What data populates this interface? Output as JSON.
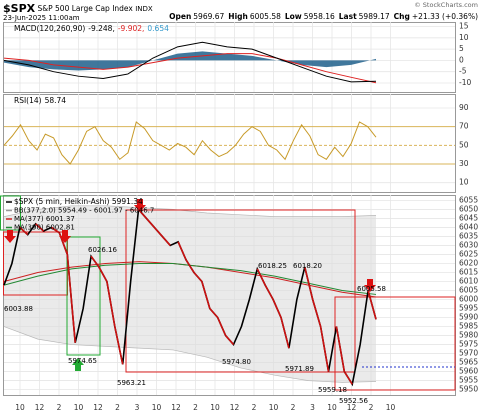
{
  "header": {
    "symbol": "$SPX",
    "name": "S&P 500 Large Cap Index",
    "exchange": "INDX",
    "date": "23-Jun-2025 11:00am",
    "quote": [
      {
        "label": "Open",
        "value": "5969.67"
      },
      {
        "label": "High",
        "value": "6005.58"
      },
      {
        "label": "Low",
        "value": "5958.16"
      },
      {
        "label": "Last",
        "value": "5989.17"
      },
      {
        "label": "Chg",
        "value": "+21.33 (+0.36%)"
      }
    ],
    "credit": "© StockCharts.com"
  },
  "chart_data": [
    {
      "type": "line",
      "legend": [
        {
          "text": "MACD(120,260,90)",
          "color": "#000000"
        },
        {
          "text": "-9.248,",
          "color": "#000000"
        },
        {
          "text": "-9.902,",
          "color": "#dd2222"
        },
        {
          "text": "0.654",
          "color": "#3399cc"
        }
      ],
      "ylim": [
        -14,
        17
      ],
      "yticks": [
        15,
        10,
        5,
        0,
        -5,
        -10
      ],
      "grid": true,
      "series": [
        {
          "color": "#1f5f8b",
          "style": "area",
          "values": [
            -1,
            -3,
            -4,
            -4.5,
            -4,
            -3,
            0,
            3,
            4,
            3,
            2,
            0,
            -2,
            -3,
            -2,
            0.654
          ]
        },
        {
          "color": "#dd2222",
          "style": "line",
          "values": [
            1,
            0,
            -2,
            -3,
            -4,
            -3,
            -1,
            1,
            2,
            3,
            3,
            1,
            -2,
            -5,
            -7.5,
            -9.902
          ]
        },
        {
          "color": "#000000",
          "style": "line",
          "values": [
            0,
            -2,
            -5,
            -7,
            -8,
            -6,
            1,
            6,
            8,
            6,
            5,
            1,
            -3,
            -7,
            -9.5,
            -9.248
          ]
        }
      ]
    },
    {
      "type": "line",
      "legend": [
        {
          "text": "RSI(14)",
          "color": "#000000"
        },
        {
          "text": "58.74",
          "color": "#000000"
        }
      ],
      "ylim": [
        0,
        105
      ],
      "yticks": [
        90,
        70,
        50,
        30,
        10
      ],
      "grid": true,
      "reference_color": "#d9b45a",
      "series": [
        {
          "color": "#c89b2a",
          "style": "line",
          "values": [
            50,
            60,
            72,
            55,
            45,
            62,
            58,
            40,
            30,
            45,
            65,
            70,
            55,
            48,
            35,
            42,
            75,
            68,
            55,
            50,
            45,
            52,
            48,
            40,
            55,
            45,
            38,
            42,
            50,
            62,
            70,
            65,
            50,
            45,
            35,
            55,
            72,
            60,
            40,
            35,
            48,
            38,
            52,
            75,
            70,
            58.74
          ]
        }
      ]
    },
    {
      "type": "line",
      "ylim": [
        5947,
        6058
      ],
      "yticks": [
        6055,
        6050,
        6045,
        6040,
        6035,
        6030,
        6025,
        6020,
        6015,
        6010,
        6005,
        6000,
        5995,
        5990,
        5985,
        5980,
        5975,
        5970,
        5965,
        5960,
        5955,
        5950
      ],
      "grid": true,
      "xtick_labels": [
        "10",
        "12",
        "2",
        "10",
        "12",
        "2",
        "3",
        "10",
        "12",
        "2",
        "10",
        "12",
        "2",
        "10",
        "2",
        "3",
        "10",
        "12",
        "2",
        "10"
      ],
      "band": {
        "name": "BB(377,2.0) 5954.49 - 6001.97 - 6046.7",
        "color": "#dcdcdc",
        "upper": [
          6046,
          6050,
          6052,
          6052,
          6051,
          6050,
          6048,
          6047,
          6046,
          6046,
          6046,
          6046.7
        ],
        "lower": [
          5985,
          5978,
          5975,
          5974,
          5973,
          5972,
          5968,
          5962,
          5958,
          5955,
          5954,
          5954.49
        ]
      },
      "series": [
        {
          "name": "MA(377) 6001.37",
          "color": "#cc2222",
          "style": "line",
          "values": [
            6010,
            6015,
            6018,
            6020,
            6021,
            6020,
            6018,
            6015,
            6012,
            6008,
            6004,
            6001.37
          ]
        },
        {
          "name": "MA(390) 6002.81",
          "color": "#228833",
          "style": "line",
          "values": [
            6008,
            6013,
            6017,
            6019,
            6020,
            6020,
            6018,
            6016,
            6013,
            6009,
            6005,
            6002.81
          ]
        },
        {
          "name": "$SPX (5 min, Heikin-Ashi) 5991.34",
          "color": "#000000",
          "down_color": "#cc1111",
          "style": "price",
          "values": [
            6008,
            6020,
            6040,
            6036,
            6042,
            6038,
            6040,
            6037,
            6025,
            5976,
            5995,
            6024,
            6018,
            6010,
            5985,
            5964,
            6010,
            6050,
            6045,
            6040,
            6035,
            6030,
            6032,
            6022,
            6015,
            6010,
            5995,
            5990,
            5980,
            5975,
            5985,
            6000,
            6017,
            6008,
            6000,
            5990,
            5973,
            6000,
            6018,
            6000,
            5985,
            5960,
            5985,
            5960,
            5953,
            5975,
            6005,
            5989
          ]
        }
      ],
      "annotations": [
        "6003.88",
        "6026.16",
        "5974.65",
        "5963.21",
        "6018.25",
        "6018.20",
        "5974.80",
        "5971.89",
        "5959.18",
        "5952.56",
        "6005.58"
      ]
    }
  ]
}
